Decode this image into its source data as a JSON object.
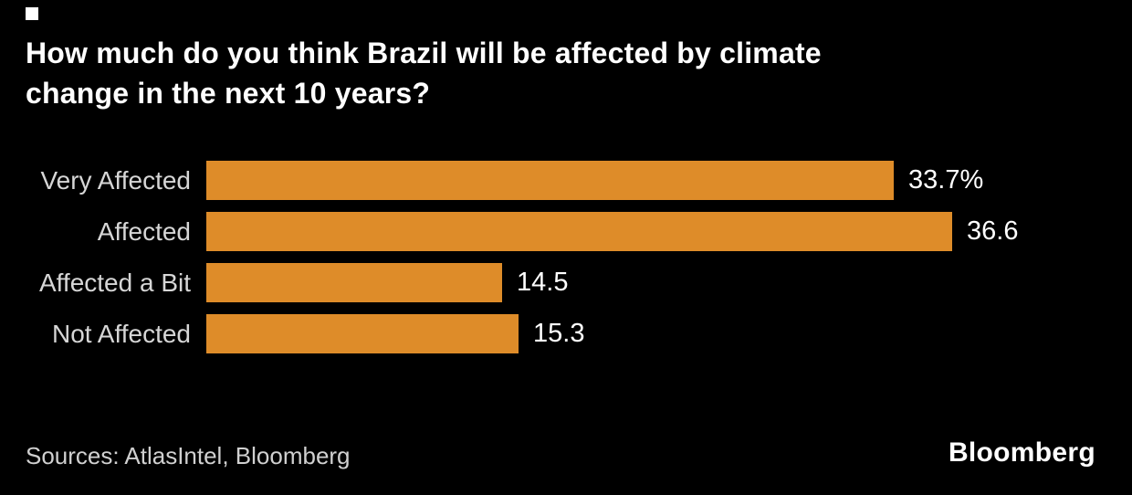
{
  "background": "#000000",
  "legend_marker_color": "#ffffff",
  "title": {
    "line1": "How much do you think Brazil will be affected by climate",
    "line2": "change in the next 10 years?"
  },
  "footer": {
    "sources": "Sources: AtlasIntel, Bloomberg",
    "brand": "Bloomberg"
  },
  "chart_data": {
    "type": "bar",
    "orientation": "horizontal",
    "title": "How much do you think Brazil will be affected by climate change in the next 10 years?",
    "categories": [
      "Very Affected",
      "Affected",
      "Affected a Bit",
      "Not Affected"
    ],
    "values": [
      33.7,
      36.6,
      14.5,
      15.3
    ],
    "value_labels": [
      "33.7%",
      "36.6",
      "14.5",
      "15.3"
    ],
    "unit": "%",
    "xlim": [
      0,
      45
    ],
    "bar_color": "#de8c29",
    "category_label_color": "#d6d6d6",
    "value_label_color": "#ffffff",
    "grid": false,
    "legend_position": "none",
    "sources": "AtlasIntel, Bloomberg"
  }
}
